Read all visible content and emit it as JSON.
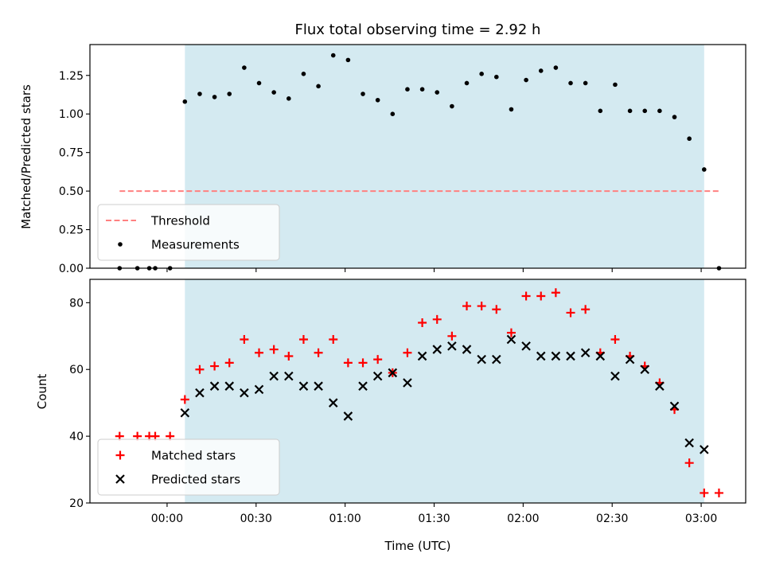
{
  "chart_data": [
    {
      "type": "scatter",
      "title": "Flux total observing time = 2.92 h",
      "xlabel": "",
      "ylabel": "Matched/Predicted stars",
      "ylim": [
        0,
        1.45
      ],
      "xlim": [
        "-00:26",
        "03:15"
      ],
      "yticks": [
        "0.00",
        "0.25",
        "0.50",
        "0.75",
        "1.00",
        "1.25"
      ],
      "grid": false,
      "legend": "lower-left",
      "observing_window": [
        "00:06",
        "03:01"
      ],
      "observing_window_color": "#d4eaf1",
      "threshold": {
        "name": "Threshold",
        "y": 0.5,
        "x_range": [
          "-00:16",
          "03:06"
        ],
        "color": "#ff8080",
        "style": "dashed"
      },
      "series": [
        {
          "name": "Measurements",
          "color": "#000000",
          "marker": "dot",
          "points": [
            [
              "-00:16",
              0.0
            ],
            [
              "-00:10",
              0.0
            ],
            [
              "-00:06",
              0.0
            ],
            [
              "-00:04",
              0.0
            ],
            [
              "00:01",
              0.0
            ],
            [
              "00:06",
              1.08
            ],
            [
              "00:11",
              1.13
            ],
            [
              "00:16",
              1.11
            ],
            [
              "00:21",
              1.13
            ],
            [
              "00:26",
              1.3
            ],
            [
              "00:31",
              1.2
            ],
            [
              "00:36",
              1.14
            ],
            [
              "00:41",
              1.1
            ],
            [
              "00:46",
              1.26
            ],
            [
              "00:51",
              1.18
            ],
            [
              "00:56",
              1.38
            ],
            [
              "01:01",
              1.35
            ],
            [
              "01:06",
              1.13
            ],
            [
              "01:11",
              1.09
            ],
            [
              "01:16",
              1.0
            ],
            [
              "01:21",
              1.16
            ],
            [
              "01:26",
              1.16
            ],
            [
              "01:31",
              1.14
            ],
            [
              "01:36",
              1.05
            ],
            [
              "01:41",
              1.2
            ],
            [
              "01:46",
              1.26
            ],
            [
              "01:51",
              1.24
            ],
            [
              "01:56",
              1.03
            ],
            [
              "02:01",
              1.22
            ],
            [
              "02:06",
              1.28
            ],
            [
              "02:11",
              1.3
            ],
            [
              "02:16",
              1.2
            ],
            [
              "02:21",
              1.2
            ],
            [
              "02:26",
              1.02
            ],
            [
              "02:31",
              1.19
            ],
            [
              "02:36",
              1.02
            ],
            [
              "02:41",
              1.02
            ],
            [
              "02:46",
              1.02
            ],
            [
              "02:51",
              0.98
            ],
            [
              "02:56",
              0.84
            ],
            [
              "03:01",
              0.64
            ],
            [
              "03:06",
              0.0
            ]
          ]
        }
      ]
    },
    {
      "type": "scatter",
      "title": "",
      "xlabel": "Time (UTC)",
      "ylabel": "Count",
      "ylim": [
        20,
        87
      ],
      "xlim": [
        "-00:26",
        "03:15"
      ],
      "yticks": [
        "20",
        "40",
        "60",
        "80"
      ],
      "xticks": [
        "00:00",
        "00:30",
        "01:00",
        "01:30",
        "02:00",
        "02:30",
        "03:00"
      ],
      "grid": false,
      "legend": "lower-left",
      "observing_window": [
        "00:06",
        "03:01"
      ],
      "observing_window_color": "#d4eaf1",
      "series": [
        {
          "name": "Matched stars",
          "color": "#ff0000",
          "marker": "plus",
          "points": [
            [
              "-00:16",
              40
            ],
            [
              "-00:10",
              40
            ],
            [
              "-00:06",
              40
            ],
            [
              "-00:04",
              40
            ],
            [
              "00:01",
              40
            ],
            [
              "00:06",
              51
            ],
            [
              "00:11",
              60
            ],
            [
              "00:16",
              61
            ],
            [
              "00:21",
              62
            ],
            [
              "00:26",
              69
            ],
            [
              "00:31",
              65
            ],
            [
              "00:36",
              66
            ],
            [
              "00:41",
              64
            ],
            [
              "00:46",
              69
            ],
            [
              "00:51",
              65
            ],
            [
              "00:56",
              69
            ],
            [
              "01:01",
              62
            ],
            [
              "01:06",
              62
            ],
            [
              "01:11",
              63
            ],
            [
              "01:16",
              59
            ],
            [
              "01:21",
              65
            ],
            [
              "01:26",
              74
            ],
            [
              "01:31",
              75
            ],
            [
              "01:36",
              70
            ],
            [
              "01:41",
              79
            ],
            [
              "01:46",
              79
            ],
            [
              "01:51",
              78
            ],
            [
              "01:56",
              71
            ],
            [
              "02:01",
              82
            ],
            [
              "02:06",
              82
            ],
            [
              "02:11",
              83
            ],
            [
              "02:16",
              77
            ],
            [
              "02:21",
              78
            ],
            [
              "02:26",
              65
            ],
            [
              "02:31",
              69
            ],
            [
              "02:36",
              64
            ],
            [
              "02:41",
              61
            ],
            [
              "02:46",
              56
            ],
            [
              "02:51",
              48
            ],
            [
              "02:56",
              32
            ],
            [
              "03:01",
              23
            ],
            [
              "03:06",
              23
            ]
          ]
        },
        {
          "name": "Predicted stars",
          "color": "#000000",
          "marker": "cross",
          "points": [
            [
              "00:06",
              47
            ],
            [
              "00:11",
              53
            ],
            [
              "00:16",
              55
            ],
            [
              "00:21",
              55
            ],
            [
              "00:26",
              53
            ],
            [
              "00:31",
              54
            ],
            [
              "00:36",
              58
            ],
            [
              "00:41",
              58
            ],
            [
              "00:46",
              55
            ],
            [
              "00:51",
              55
            ],
            [
              "00:56",
              50
            ],
            [
              "01:01",
              46
            ],
            [
              "01:06",
              55
            ],
            [
              "01:11",
              58
            ],
            [
              "01:16",
              59
            ],
            [
              "01:21",
              56
            ],
            [
              "01:26",
              64
            ],
            [
              "01:31",
              66
            ],
            [
              "01:36",
              67
            ],
            [
              "01:41",
              66
            ],
            [
              "01:46",
              63
            ],
            [
              "01:51",
              63
            ],
            [
              "01:56",
              69
            ],
            [
              "02:01",
              67
            ],
            [
              "02:06",
              64
            ],
            [
              "02:11",
              64
            ],
            [
              "02:16",
              64
            ],
            [
              "02:21",
              65
            ],
            [
              "02:26",
              64
            ],
            [
              "02:31",
              58
            ],
            [
              "02:36",
              63
            ],
            [
              "02:41",
              60
            ],
            [
              "02:46",
              55
            ],
            [
              "02:51",
              49
            ],
            [
              "02:56",
              38
            ],
            [
              "03:01",
              36
            ]
          ]
        }
      ]
    }
  ]
}
